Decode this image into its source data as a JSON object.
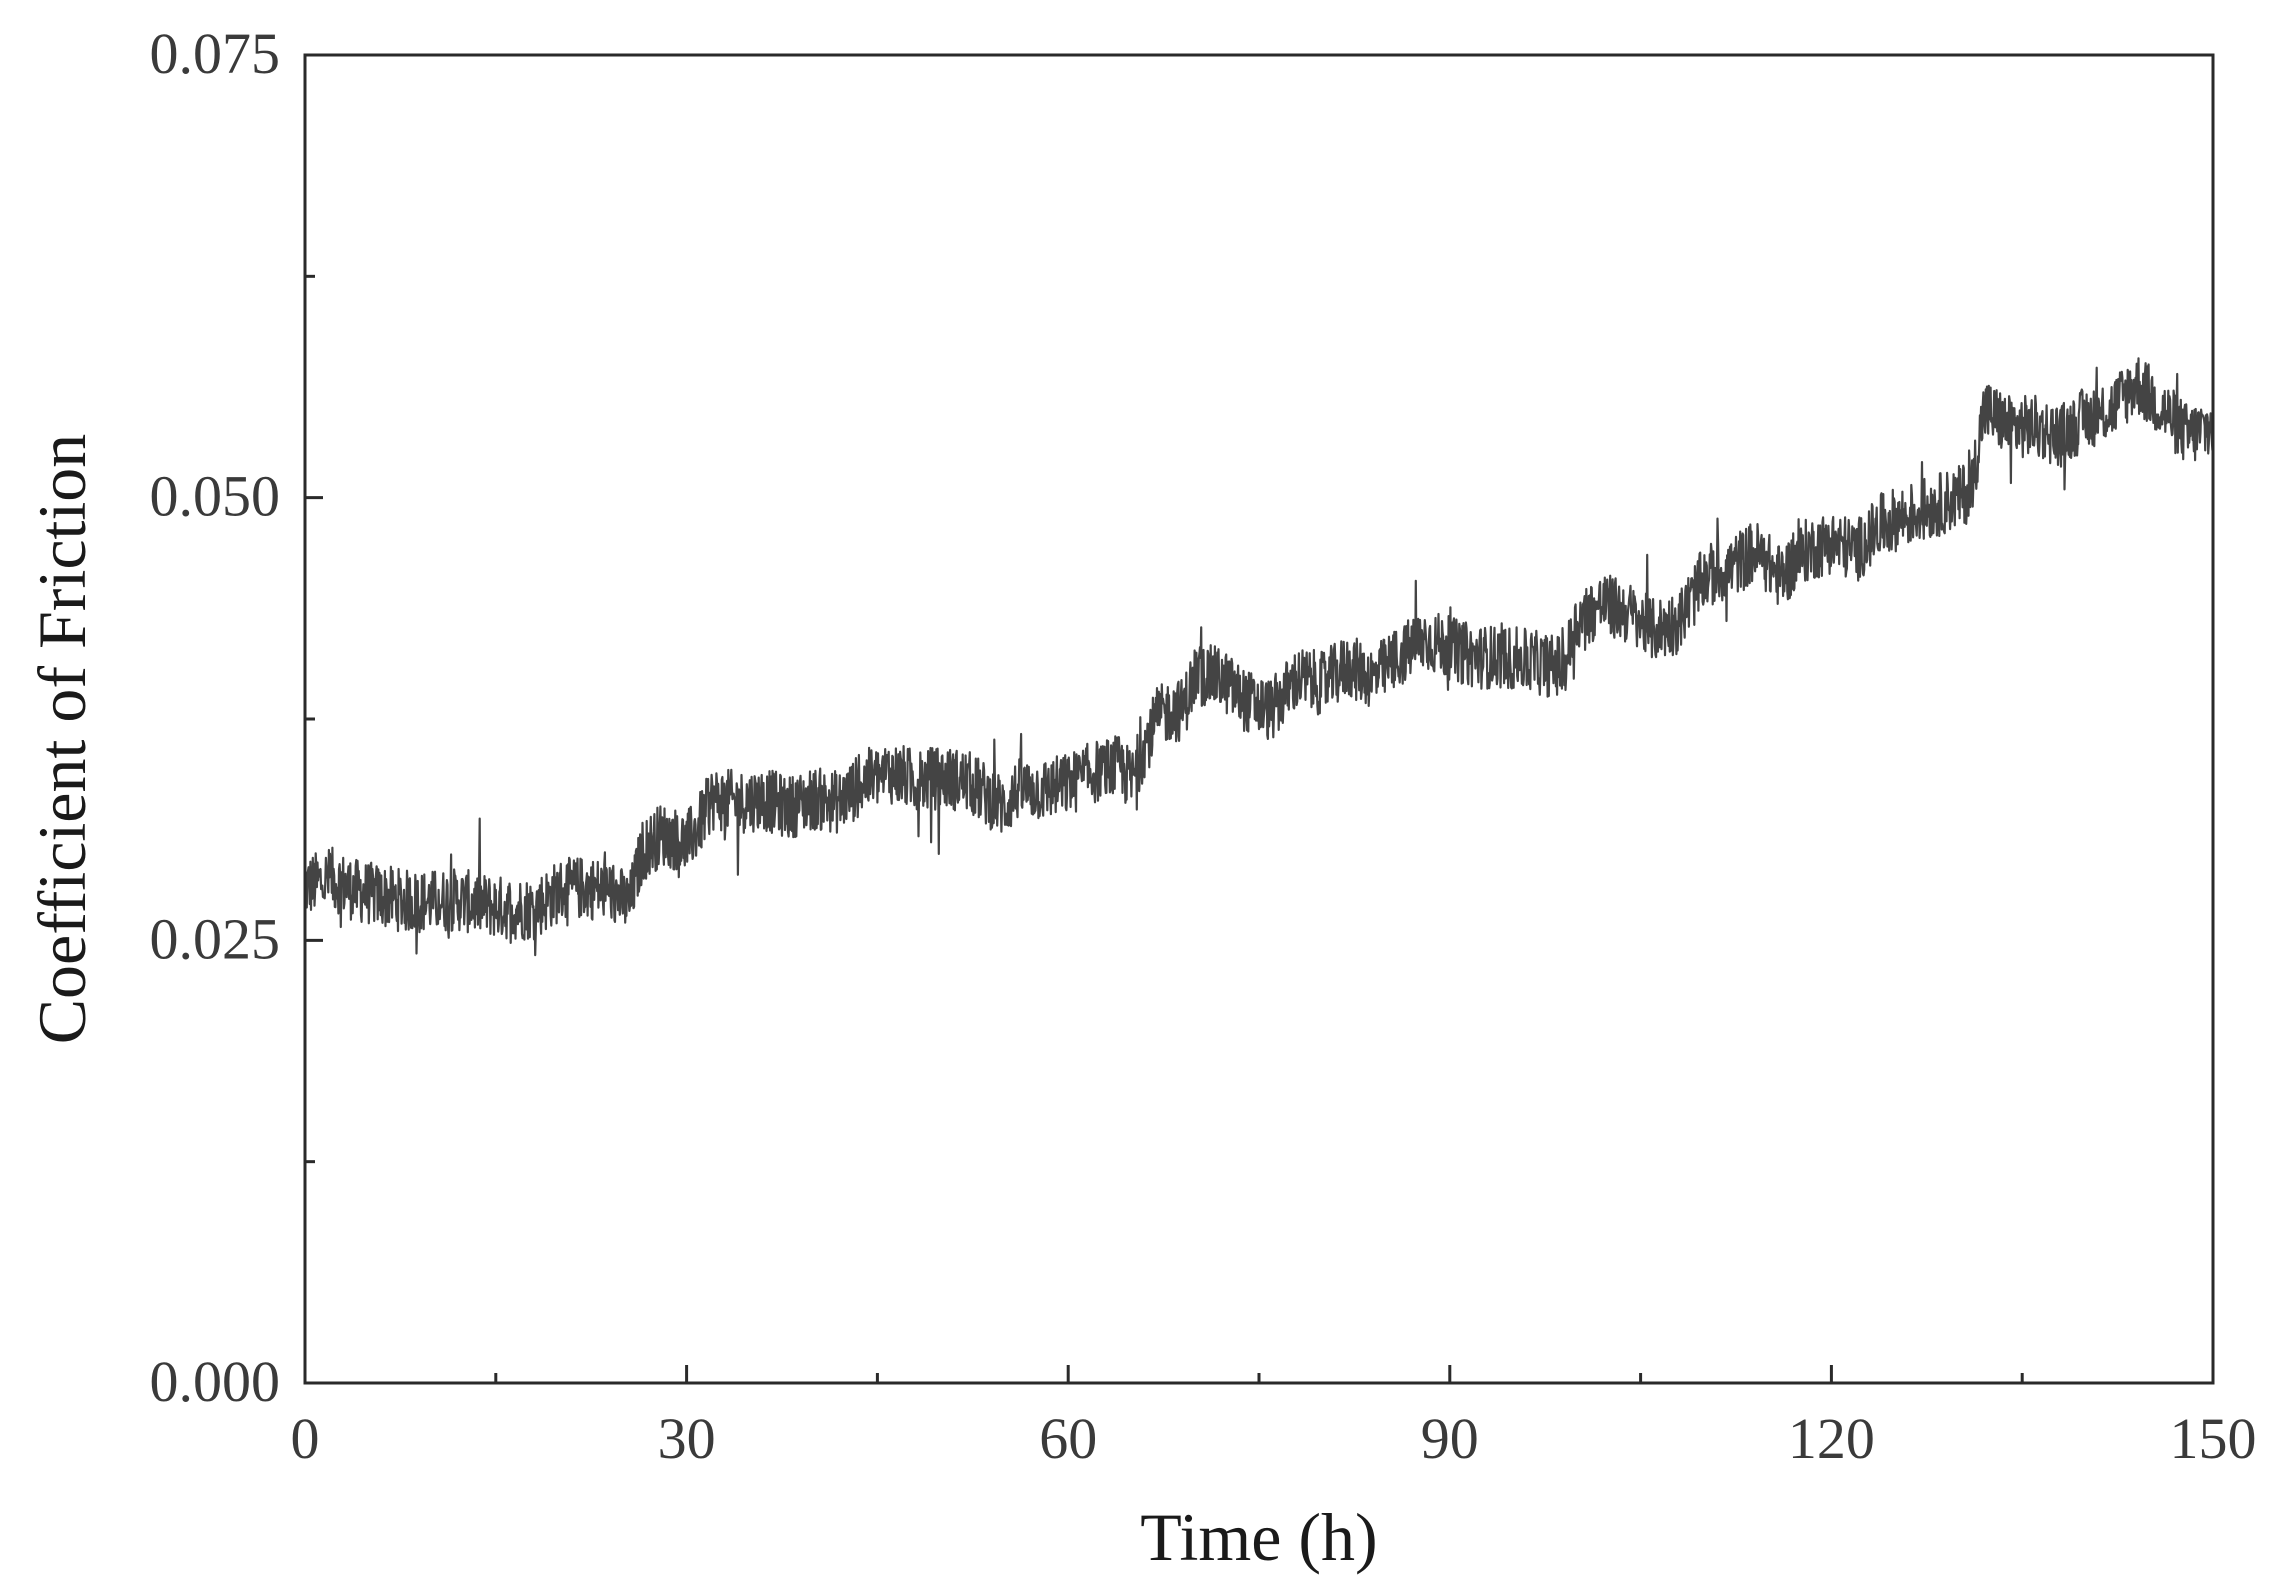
{
  "chart_data": {
    "type": "line",
    "title": "",
    "xlabel": "Time (h)",
    "ylabel": "Coefficient of Friction",
    "xlim": [
      0,
      150
    ],
    "ylim": [
      0.0,
      0.075
    ],
    "x_ticks": [
      0,
      30,
      60,
      90,
      120,
      150
    ],
    "x_tick_labels": [
      "0",
      "30",
      "60",
      "90",
      "120",
      "150"
    ],
    "x_minor_ticks": [
      15,
      45,
      75,
      105,
      135
    ],
    "y_ticks": [
      0.0,
      0.025,
      0.05,
      0.075
    ],
    "y_tick_labels": [
      "0.000",
      "0.025",
      "0.050",
      "0.075"
    ],
    "y_minor_ticks": [
      0.0125,
      0.0375,
      0.0625
    ],
    "grid": false,
    "legend": "none",
    "line_color": "#444444",
    "series": [
      {
        "x": [
          0,
          2,
          4,
          6,
          8,
          10,
          12,
          14,
          16,
          18,
          20,
          22,
          24,
          25.5,
          26.5,
          28,
          30,
          31,
          32,
          34,
          36,
          38,
          40,
          42,
          44,
          46,
          48,
          50,
          52,
          54,
          55,
          56,
          58,
          60,
          62,
          64,
          65,
          66,
          67,
          68,
          69,
          70,
          72,
          74,
          76,
          78,
          80,
          82,
          84,
          86,
          88,
          90,
          92,
          94,
          96,
          98,
          99,
          100,
          102,
          104,
          105,
          106,
          108,
          110,
          112,
          114,
          116,
          118,
          120,
          122,
          124,
          126,
          128,
          130,
          131,
          132,
          134,
          136,
          138,
          140,
          142,
          144,
          146,
          148,
          150
        ],
        "y": [
          0.028,
          0.0285,
          0.0278,
          0.0275,
          0.0272,
          0.0272,
          0.0273,
          0.027,
          0.0268,
          0.0268,
          0.0278,
          0.028,
          0.0278,
          0.027,
          0.03,
          0.031,
          0.0305,
          0.0315,
          0.033,
          0.0328,
          0.033,
          0.0325,
          0.033,
          0.0328,
          0.034,
          0.0345,
          0.034,
          0.0342,
          0.034,
          0.033,
          0.0325,
          0.0335,
          0.0335,
          0.0338,
          0.0345,
          0.0348,
          0.034,
          0.036,
          0.0375,
          0.038,
          0.038,
          0.04,
          0.0398,
          0.0385,
          0.038,
          0.0398,
          0.0395,
          0.0405,
          0.0398,
          0.041,
          0.042,
          0.0415,
          0.041,
          0.041,
          0.0408,
          0.0405,
          0.0405,
          0.043,
          0.044,
          0.0435,
          0.043,
          0.0425,
          0.043,
          0.0455,
          0.046,
          0.047,
          0.0455,
          0.047,
          0.0475,
          0.047,
          0.0485,
          0.049,
          0.0495,
          0.05,
          0.0505,
          0.055,
          0.054,
          0.054,
          0.0535,
          0.0545,
          0.055,
          0.0565,
          0.055,
          0.0535,
          0.054
        ],
        "noise_amplitude": 0.0018
      }
    ]
  }
}
